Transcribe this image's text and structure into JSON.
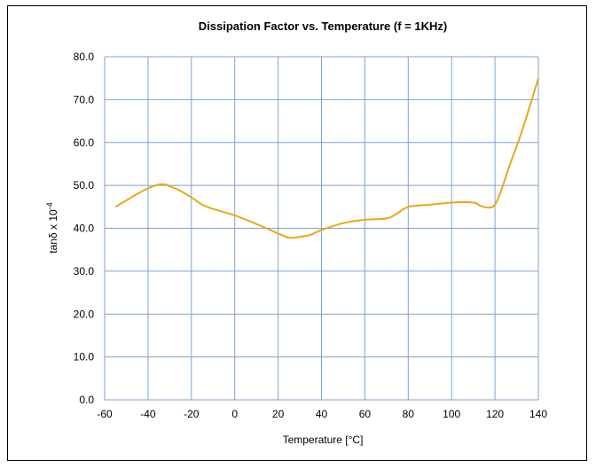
{
  "chart_data": {
    "type": "line",
    "title": "Dissipation Factor vs. Temperature (f = 1KHz)",
    "xlabel": "Temperature [°C]",
    "ylabel_base": "tanδ x 10",
    "ylabel_exp": "-4",
    "xlim": [
      -60,
      140
    ],
    "ylim": [
      0,
      80
    ],
    "x_ticks": [
      "-60",
      "-40",
      "-20",
      "0",
      "20",
      "40",
      "60",
      "80",
      "100",
      "120",
      "140"
    ],
    "y_ticks": [
      "0.0",
      "10.0",
      "20.0",
      "30.0",
      "40.0",
      "50.0",
      "60.0",
      "70.0",
      "80.0"
    ],
    "grid": true,
    "series": [
      {
        "color": "#E8A817",
        "x": [
          -55,
          -50,
          -45,
          -40,
          -35,
          -32,
          -30,
          -25,
          -20,
          -15,
          -10,
          0,
          10,
          20,
          25,
          30,
          35,
          40,
          50,
          60,
          70,
          75,
          80,
          90,
          100,
          110,
          113,
          117,
          120,
          123,
          127,
          132,
          137,
          140
        ],
        "y": [
          45.0,
          46.5,
          48.0,
          49.3,
          50.2,
          50.2,
          49.8,
          48.7,
          47.2,
          45.5,
          44.5,
          43.0,
          41.0,
          38.8,
          37.8,
          38.0,
          38.5,
          39.6,
          41.2,
          42.0,
          42.3,
          43.5,
          45.0,
          45.5,
          46.0,
          46.0,
          45.3,
          44.8,
          45.5,
          49.0,
          55.0,
          62.0,
          70.0,
          75.0
        ]
      }
    ]
  }
}
